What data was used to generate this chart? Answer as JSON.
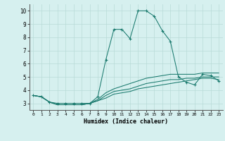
{
  "xlabel": "Humidex (Indice chaleur)",
  "background_color": "#d6f0ef",
  "line_color": "#1a7a6e",
  "grid_color": "#b8dbd8",
  "xlim": [
    -0.5,
    23.5
  ],
  "ylim": [
    2.5,
    10.5
  ],
  "xticks": [
    0,
    1,
    2,
    3,
    4,
    5,
    6,
    7,
    8,
    9,
    10,
    11,
    12,
    13,
    14,
    15,
    16,
    17,
    18,
    19,
    20,
    21,
    22,
    23
  ],
  "yticks": [
    3,
    4,
    5,
    6,
    7,
    8,
    9,
    10
  ],
  "series": [
    {
      "x": [
        0,
        1,
        2,
        3,
        4,
        5,
        6,
        7,
        8,
        9,
        10,
        11,
        12,
        13,
        14,
        15,
        16,
        17,
        18,
        19,
        20,
        21,
        22,
        23
      ],
      "y": [
        3.6,
        3.5,
        3.1,
        3.0,
        3.0,
        3.0,
        3.0,
        3.0,
        3.5,
        6.3,
        8.6,
        8.6,
        7.9,
        10.0,
        10.0,
        9.6,
        8.5,
        7.7,
        5.0,
        4.6,
        4.4,
        5.2,
        5.1,
        4.7
      ],
      "marker": true
    },
    {
      "x": [
        0,
        1,
        2,
        3,
        4,
        5,
        6,
        7,
        8,
        9,
        10,
        11,
        12,
        13,
        14,
        15,
        16,
        17,
        18,
        19,
        20,
        21,
        22,
        23
      ],
      "y": [
        3.6,
        3.5,
        3.1,
        2.9,
        2.9,
        2.9,
        2.9,
        3.0,
        3.3,
        3.8,
        4.1,
        4.3,
        4.5,
        4.7,
        4.9,
        5.0,
        5.1,
        5.2,
        5.2,
        5.2,
        5.2,
        5.3,
        5.3,
        5.3
      ],
      "marker": false
    },
    {
      "x": [
        0,
        1,
        2,
        3,
        4,
        5,
        6,
        7,
        8,
        9,
        10,
        11,
        12,
        13,
        14,
        15,
        16,
        17,
        18,
        19,
        20,
        21,
        22,
        23
      ],
      "y": [
        3.6,
        3.5,
        3.1,
        2.9,
        2.9,
        2.9,
        2.9,
        3.0,
        3.2,
        3.6,
        3.9,
        4.0,
        4.1,
        4.3,
        4.5,
        4.6,
        4.7,
        4.8,
        4.8,
        4.9,
        4.9,
        5.0,
        5.0,
        5.0
      ],
      "marker": false
    },
    {
      "x": [
        0,
        1,
        2,
        3,
        4,
        5,
        6,
        7,
        8,
        9,
        10,
        11,
        12,
        13,
        14,
        15,
        16,
        17,
        18,
        19,
        20,
        21,
        22,
        23
      ],
      "y": [
        3.6,
        3.5,
        3.1,
        2.9,
        2.9,
        2.9,
        2.9,
        3.0,
        3.2,
        3.4,
        3.7,
        3.8,
        3.9,
        4.1,
        4.2,
        4.3,
        4.4,
        4.5,
        4.6,
        4.7,
        4.8,
        4.9,
        4.9,
        4.8
      ],
      "marker": false
    }
  ]
}
